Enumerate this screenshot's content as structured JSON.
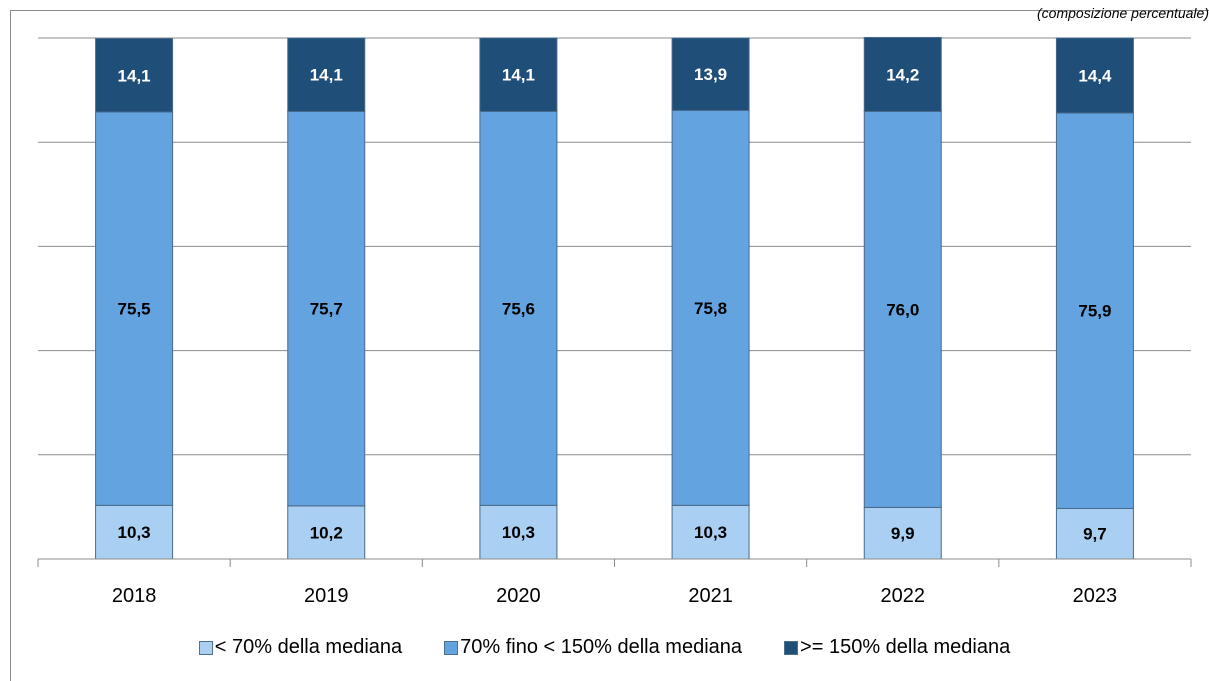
{
  "chart_data": {
    "type": "bar",
    "stacked": true,
    "subtitle": "(composizione percentuale)",
    "categories": [
      "2018",
      "2019",
      "2020",
      "2021",
      "2022",
      "2023"
    ],
    "series": [
      {
        "name": "< 70% della mediana",
        "color": "#a9cff2",
        "values": [
          10.3,
          10.2,
          10.3,
          10.3,
          9.9,
          9.7
        ],
        "labels": [
          "10,3",
          "10,2",
          "10,3",
          "10,3",
          "9,9",
          "9,7"
        ]
      },
      {
        "name": "70% fino < 150% della mediana",
        "color": "#62a3e0",
        "values": [
          75.5,
          75.7,
          75.6,
          75.8,
          76.0,
          75.9
        ],
        "labels": [
          "75,5",
          "75,7",
          "75,6",
          "75,8",
          "76,0",
          "75,9"
        ]
      },
      {
        "name": ">= 150% della mediana",
        "color": "#1f4e79",
        "values": [
          14.1,
          14.1,
          14.1,
          13.9,
          14.2,
          14.4
        ],
        "labels": [
          "14,1",
          "14,1",
          "14,1",
          "13,9",
          "14,2",
          "14,4"
        ]
      }
    ],
    "ylim": [
      0,
      100
    ],
    "grid": true,
    "legend_position": "bottom"
  }
}
